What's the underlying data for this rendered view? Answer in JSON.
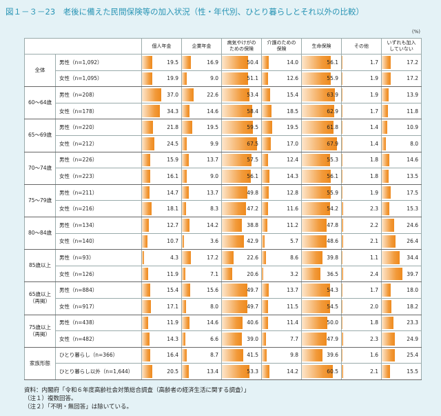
{
  "title": "図１－３－23　老後に備えた民間保険等の加入状況（性・年代別、ひとり暮らしとそれ以外の比較）",
  "unit": "(%)",
  "columns": [
    [
      "個人年金"
    ],
    [
      "企業年金"
    ],
    [
      "病気やけがの",
      "ための保険"
    ],
    [
      "介護のための",
      "保険"
    ],
    [
      "生命保険"
    ],
    [
      "その他"
    ],
    [
      "いずれも加入",
      "していない"
    ]
  ],
  "groups": [
    {
      "label": [
        "全体"
      ],
      "rows": [
        {
          "label": "男性（n=1,092）",
          "values": [
            19.5,
            16.9,
            50.4,
            14.0,
            56.1,
            1.7,
            17.2
          ],
          "value_labels": [
            "19.5",
            "16.9",
            "50.4",
            "14.0",
            "56.1",
            "1.7",
            "17.2"
          ]
        },
        {
          "label": "女性（n=1,095）",
          "values": [
            19.9,
            9.0,
            51.1,
            12.6,
            55.9,
            1.9,
            17.2
          ],
          "value_labels": [
            "19.9",
            "9.0",
            "51.1",
            "12.6",
            "55.9",
            "1.9",
            "17.2"
          ]
        }
      ]
    },
    {
      "label": [
        "60～64歳"
      ],
      "rows": [
        {
          "label": "男性（n=208）",
          "values": [
            37.0,
            22.6,
            53.4,
            15.4,
            63.9,
            1.9,
            13.9
          ],
          "value_labels": [
            "37.0",
            "22.6",
            "53.4",
            "15.4",
            "63.9",
            "1.9",
            "13.9"
          ]
        },
        {
          "label": "女性（n=178）",
          "values": [
            34.3,
            14.6,
            58.4,
            18.5,
            62.9,
            1.7,
            11.8
          ],
          "value_labels": [
            "34.3",
            "14.6",
            "58.4",
            "18.5",
            "62.9",
            "1.7",
            "11.8"
          ]
        }
      ]
    },
    {
      "label": [
        "65～69歳"
      ],
      "rows": [
        {
          "label": "男性（n=220）",
          "values": [
            21.8,
            19.5,
            59.5,
            19.5,
            61.8,
            1.4,
            10.9
          ],
          "value_labels": [
            "21.8",
            "19.5",
            "59.5",
            "19.5",
            "61.8",
            "1.4",
            "10.9"
          ]
        },
        {
          "label": "女性（n=212）",
          "values": [
            24.5,
            9.9,
            67.5,
            17.0,
            67.9,
            1.4,
            8.0
          ],
          "value_labels": [
            "24.5",
            "9.9",
            "67.5",
            "17.0",
            "67.9",
            "1.4",
            "8.0"
          ]
        }
      ]
    },
    {
      "label": [
        "70～74歳"
      ],
      "rows": [
        {
          "label": "男性（n=226）",
          "values": [
            15.9,
            13.7,
            57.5,
            12.4,
            55.3,
            1.8,
            14.6
          ],
          "value_labels": [
            "15.9",
            "13.7",
            "57.5",
            "12.4",
            "55.3",
            "1.8",
            "14.6"
          ]
        },
        {
          "label": "女性（n=223）",
          "values": [
            16.1,
            9.0,
            56.1,
            14.3,
            56.1,
            1.8,
            13.5
          ],
          "value_labels": [
            "16.1",
            "9.0",
            "56.1",
            "14.3",
            "56.1",
            "1.8",
            "13.5"
          ]
        }
      ]
    },
    {
      "label": [
        "75～79歳"
      ],
      "rows": [
        {
          "label": "男性（n=211）",
          "values": [
            14.7,
            13.7,
            49.8,
            12.8,
            55.9,
            1.9,
            17.5
          ],
          "value_labels": [
            "14.7",
            "13.7",
            "49.8",
            "12.8",
            "55.9",
            "1.9",
            "17.5"
          ]
        },
        {
          "label": "女性（n=216）",
          "values": [
            18.1,
            8.3,
            47.2,
            11.6,
            54.2,
            2.3,
            15.3
          ],
          "value_labels": [
            "18.1",
            "8.3",
            "47.2",
            "11.6",
            "54.2",
            "2.3",
            "15.3"
          ]
        }
      ]
    },
    {
      "label": [
        "80～84歳"
      ],
      "rows": [
        {
          "label": "男性（n=134）",
          "values": [
            12.7,
            14.2,
            38.8,
            11.2,
            47.8,
            2.2,
            24.6
          ],
          "value_labels": [
            "12.7",
            "14.2",
            "38.8",
            "11.2",
            "47.8",
            "2.2",
            "24.6"
          ]
        },
        {
          "label": "女性（n=140）",
          "values": [
            10.7,
            3.6,
            42.9,
            5.7,
            48.6,
            2.1,
            26.4
          ],
          "value_labels": [
            "10.7",
            "3.6",
            "42.9",
            "5.7",
            "48.6",
            "2.1",
            "26.4"
          ]
        }
      ]
    },
    {
      "label": [
        "85歳以上"
      ],
      "rows": [
        {
          "label": "男性（n=93）",
          "values": [
            4.3,
            17.2,
            22.6,
            8.6,
            39.8,
            1.1,
            34.4
          ],
          "value_labels": [
            "4.3",
            "17.2",
            "22.6",
            "8.6",
            "39.8",
            "1.1",
            "34.4"
          ]
        },
        {
          "label": "女性（n=126）",
          "values": [
            11.9,
            7.1,
            20.6,
            3.2,
            36.5,
            2.4,
            39.7
          ],
          "value_labels": [
            "11.9",
            "7.1",
            "20.6",
            "3.2",
            "36.5",
            "2.4",
            "39.7"
          ]
        }
      ]
    },
    {
      "label": [
        "65歳以上",
        "（再掲）"
      ],
      "rows": [
        {
          "label": "男性（n=884）",
          "values": [
            15.4,
            15.6,
            49.7,
            13.7,
            54.3,
            1.7,
            18.0
          ],
          "value_labels": [
            "15.4",
            "15.6",
            "49.7",
            "13.7",
            "54.3",
            "1.7",
            "18.0"
          ]
        },
        {
          "label": "女性（n=917）",
          "values": [
            17.1,
            8.0,
            49.7,
            11.5,
            54.5,
            2.0,
            18.2
          ],
          "value_labels": [
            "17.1",
            "8.0",
            "49.7",
            "11.5",
            "54.5",
            "2.0",
            "18.2"
          ]
        }
      ]
    },
    {
      "label": [
        "75歳以上",
        "（再掲）"
      ],
      "rows": [
        {
          "label": "男性（n=438）",
          "values": [
            11.9,
            14.6,
            40.6,
            11.4,
            50.0,
            1.8,
            23.3
          ],
          "value_labels": [
            "11.9",
            "14.6",
            "40.6",
            "11.4",
            "50.0",
            "1.8",
            "23.3"
          ]
        },
        {
          "label": "女性（n=482）",
          "values": [
            14.3,
            6.6,
            39.0,
            7.7,
            47.9,
            2.3,
            24.9
          ],
          "value_labels": [
            "14.3",
            "6.6",
            "39.0",
            "7.7",
            "47.9",
            "2.3",
            "24.9"
          ]
        }
      ]
    },
    {
      "label": [
        "家族形態"
      ],
      "rows": [
        {
          "label": "ひとり暮らし（n=366）",
          "values": [
            16.4,
            8.7,
            41.5,
            9.8,
            39.6,
            1.6,
            25.4
          ],
          "value_labels": [
            "16.4",
            "8.7",
            "41.5",
            "9.8",
            "39.6",
            "1.6",
            "25.4"
          ]
        },
        {
          "label": "ひとり暮らし以外（n=1,644）",
          "values": [
            20.5,
            13.4,
            53.3,
            14.2,
            60.5,
            2.1,
            15.5
          ],
          "value_labels": [
            "20.5",
            "13.4",
            "53.3",
            "14.2",
            "60.5",
            "2.1",
            "15.5"
          ]
        }
      ]
    }
  ],
  "notes": [
    "資料：内閣府「令和６年度高齢社会対策総合調査（高齢者の経済生活に関する調査）」",
    "（注１）複数回答。",
    "（注２）「不明・無回答」は除いている。"
  ]
}
